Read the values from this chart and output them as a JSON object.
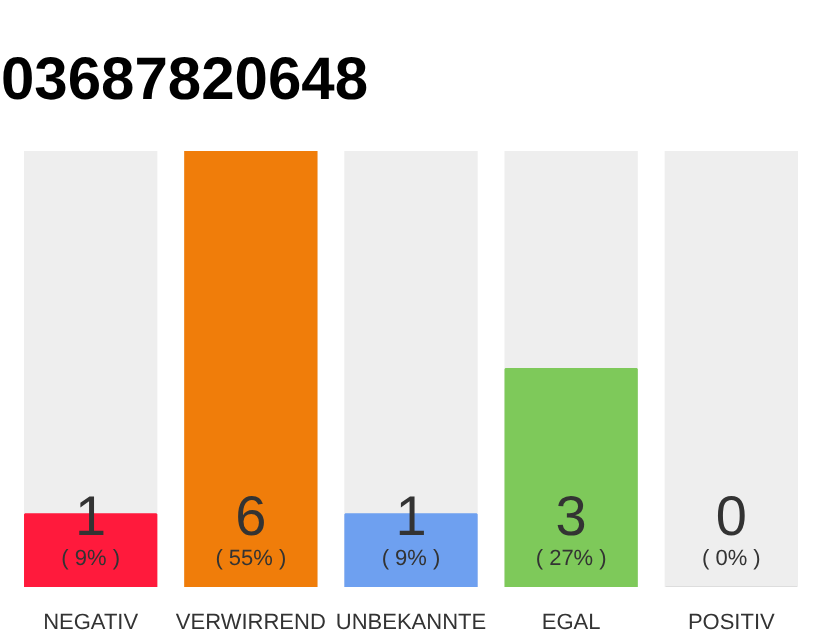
{
  "chart_data": {
    "type": "bar",
    "title": "03687820648",
    "categories": [
      "NEGATIV",
      "VERWIRREND",
      "UNBEKANNTE",
      "EGAL",
      "POSITIV"
    ],
    "values": [
      1,
      6,
      1,
      3,
      0
    ],
    "colors": [
      "#ff1a3c",
      "#f07d0a",
      "#6ea0f0",
      "#7ec95a",
      "#dddddd"
    ],
    "data_labels": true,
    "annotations": [
      "( 9% )",
      "( 55% )",
      "( 9% )",
      "( 27% )",
      "( 0% )"
    ],
    "grid": false
  }
}
